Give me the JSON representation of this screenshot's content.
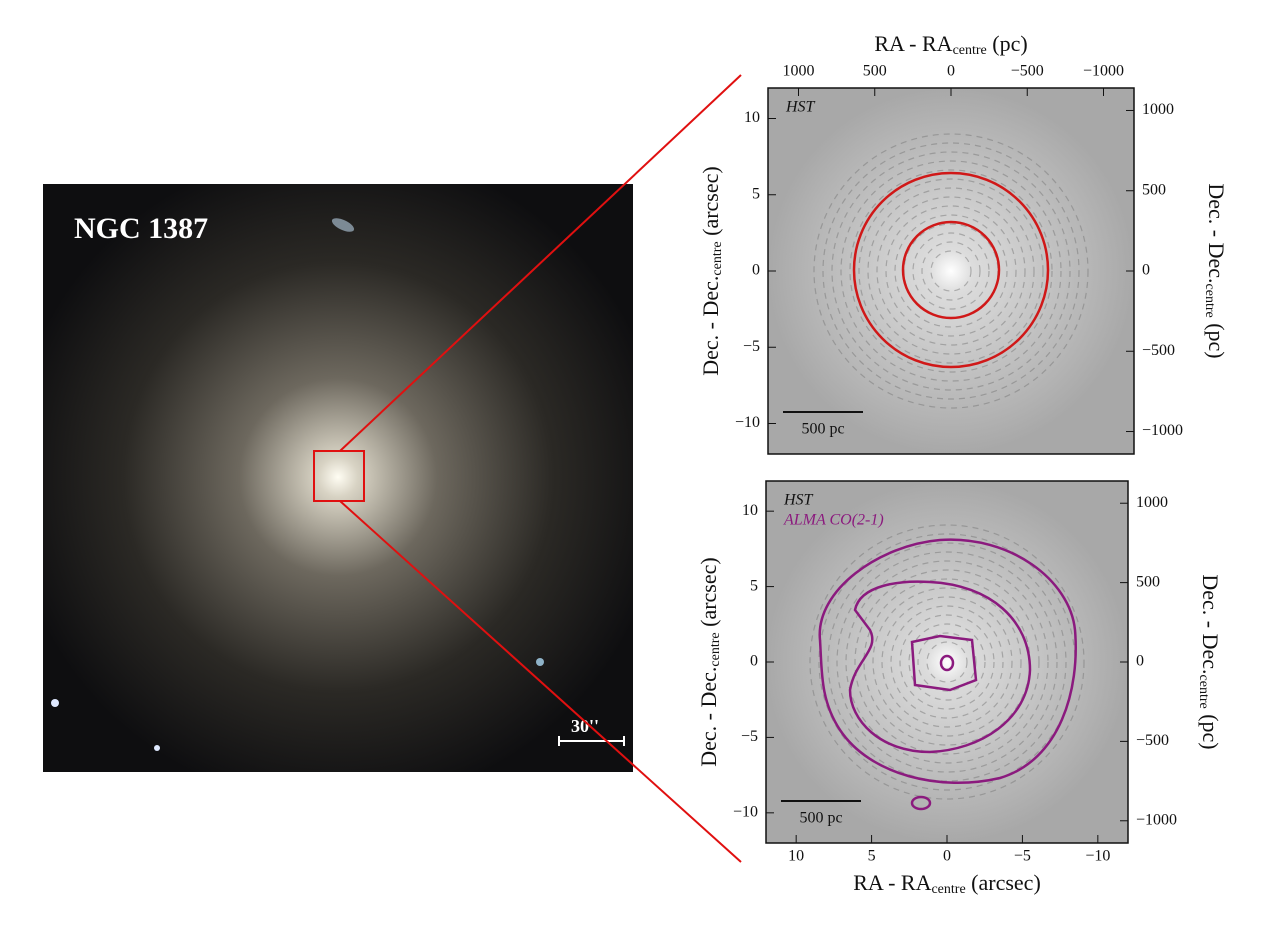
{
  "image": {
    "label": "NGC 1387",
    "scale_bar": "30''"
  },
  "panels": [
    {
      "annotation": [
        "HST"
      ],
      "scale_bar": "500 pc",
      "top_axis": {
        "label": {
          "main": "RA - RA",
          "sub": "centre",
          "unit": " (pc)"
        },
        "lim": [
          1200,
          -1200
        ],
        "ticks": [
          1000,
          500,
          0,
          {
            "value": -500,
            "label": "−500"
          },
          {
            "value": -1000,
            "label": "−1000"
          }
        ]
      },
      "left_axis": {
        "label": {
          "main": "Dec. - Dec.",
          "sub": "centre",
          "unit": " (arcsec)"
        },
        "lim": [
          -12,
          12
        ],
        "ticks": [
          10,
          5,
          0,
          {
            "value": -5,
            "label": "−5"
          },
          {
            "value": -10,
            "label": "−10"
          }
        ]
      },
      "right_axis": {
        "label": {
          "main": "Dec. - Dec.",
          "sub": "centre",
          "unit": " (pc)"
        },
        "lim": [
          -1140,
          1140
        ],
        "ticks": [
          1000,
          500,
          0,
          {
            "value": -500,
            "label": "−500"
          },
          {
            "value": -1000,
            "label": "−1000"
          }
        ]
      }
    },
    {
      "annotation": [
        "HST",
        "ALMA CO(2-1)"
      ],
      "scale_bar": "500 pc",
      "bottom_axis": {
        "label": {
          "main": "RA - RA",
          "sub": "centre",
          "unit": " (arcsec)"
        },
        "lim": [
          12,
          -12
        ],
        "ticks": [
          10,
          5,
          0,
          {
            "value": -5,
            "label": "−5"
          },
          {
            "value": -10,
            "label": "−10"
          }
        ]
      },
      "left_axis": {
        "label": {
          "main": "Dec. - Dec.",
          "sub": "centre",
          "unit": " (arcsec)"
        },
        "lim": [
          -12,
          12
        ],
        "ticks": [
          10,
          5,
          0,
          {
            "value": -5,
            "label": "−5"
          },
          {
            "value": -10,
            "label": "−10"
          }
        ]
      },
      "right_axis": {
        "label": {
          "main": "Dec. - Dec.",
          "sub": "centre",
          "unit": " (pc)"
        },
        "lim": [
          -1140,
          1140
        ],
        "ticks": [
          1000,
          500,
          0,
          {
            "value": -500,
            "label": "−500"
          },
          {
            "value": -1000,
            "label": "−1000"
          }
        ]
      }
    }
  ]
}
